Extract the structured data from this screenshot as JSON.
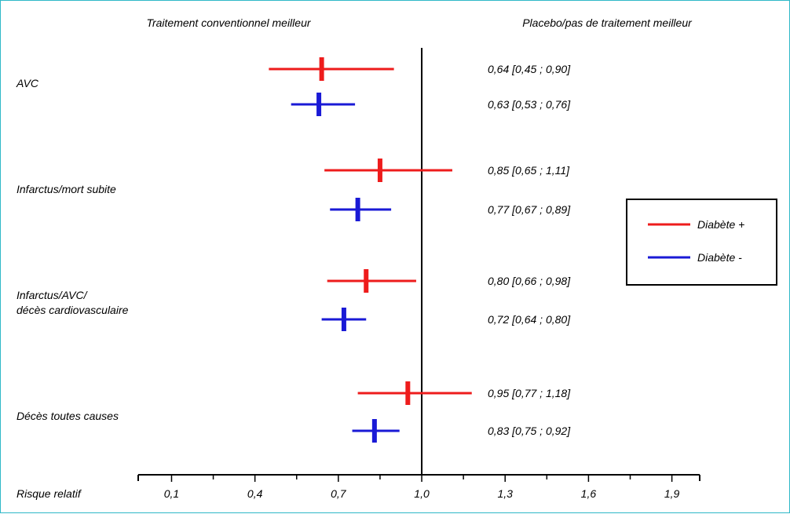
{
  "chart_data": {
    "type": "forest",
    "header_left": "Traitement conventionnel meilleur",
    "header_right": "Placebo/pas de traitement meilleur",
    "xlabel": "Risque relatif",
    "xlim": [
      -0.02,
      2.0
    ],
    "x_ticks": [
      0.1,
      0.4,
      0.7,
      1.0,
      1.3,
      1.6,
      1.9
    ],
    "x_tick_labels": [
      "0,1",
      "0,4",
      "0,7",
      "1,0",
      "1,3",
      "1,6",
      "1,9"
    ],
    "reference_line": 1.0,
    "grid": false,
    "legend_placement": "right",
    "series": [
      {
        "name": "Diabète +",
        "color": "#ee1c1c"
      },
      {
        "name": "Diabète -",
        "color": "#1a1ad6"
      }
    ],
    "groups": [
      {
        "label_lines": [
          "AVC"
        ],
        "rows": [
          {
            "series": 0,
            "rr": 0.64,
            "lo": 0.45,
            "hi": 0.9,
            "text": "0,64 [0,45 ; 0,90]"
          },
          {
            "series": 1,
            "rr": 0.63,
            "lo": 0.53,
            "hi": 0.76,
            "text": "0,63 [0,53 ; 0,76]"
          }
        ]
      },
      {
        "label_lines": [
          "Infarctus/mort subite"
        ],
        "rows": [
          {
            "series": 0,
            "rr": 0.85,
            "lo": 0.65,
            "hi": 1.11,
            "text": "0,85 [0,65 ; 1,11]"
          },
          {
            "series": 1,
            "rr": 0.77,
            "lo": 0.67,
            "hi": 0.89,
            "text": "0,77 [0,67 ; 0,89]"
          }
        ]
      },
      {
        "label_lines": [
          "Infarctus/AVC/",
          "décès cardiovasculaire"
        ],
        "rows": [
          {
            "series": 0,
            "rr": 0.8,
            "lo": 0.66,
            "hi": 0.98,
            "text": "0,80 [0,66 ; 0,98]"
          },
          {
            "series": 1,
            "rr": 0.72,
            "lo": 0.64,
            "hi": 0.8,
            "text": "0,72 [0,64 ; 0,80]"
          }
        ]
      },
      {
        "label_lines": [
          "Décès toutes causes"
        ],
        "rows": [
          {
            "series": 0,
            "rr": 0.95,
            "lo": 0.77,
            "hi": 1.18,
            "text": "0,95 [0,77 ; 1,18]"
          },
          {
            "series": 1,
            "rr": 0.83,
            "lo": 0.75,
            "hi": 0.92,
            "text": "0,83 [0,75 ; 0,92]"
          }
        ]
      }
    ]
  }
}
